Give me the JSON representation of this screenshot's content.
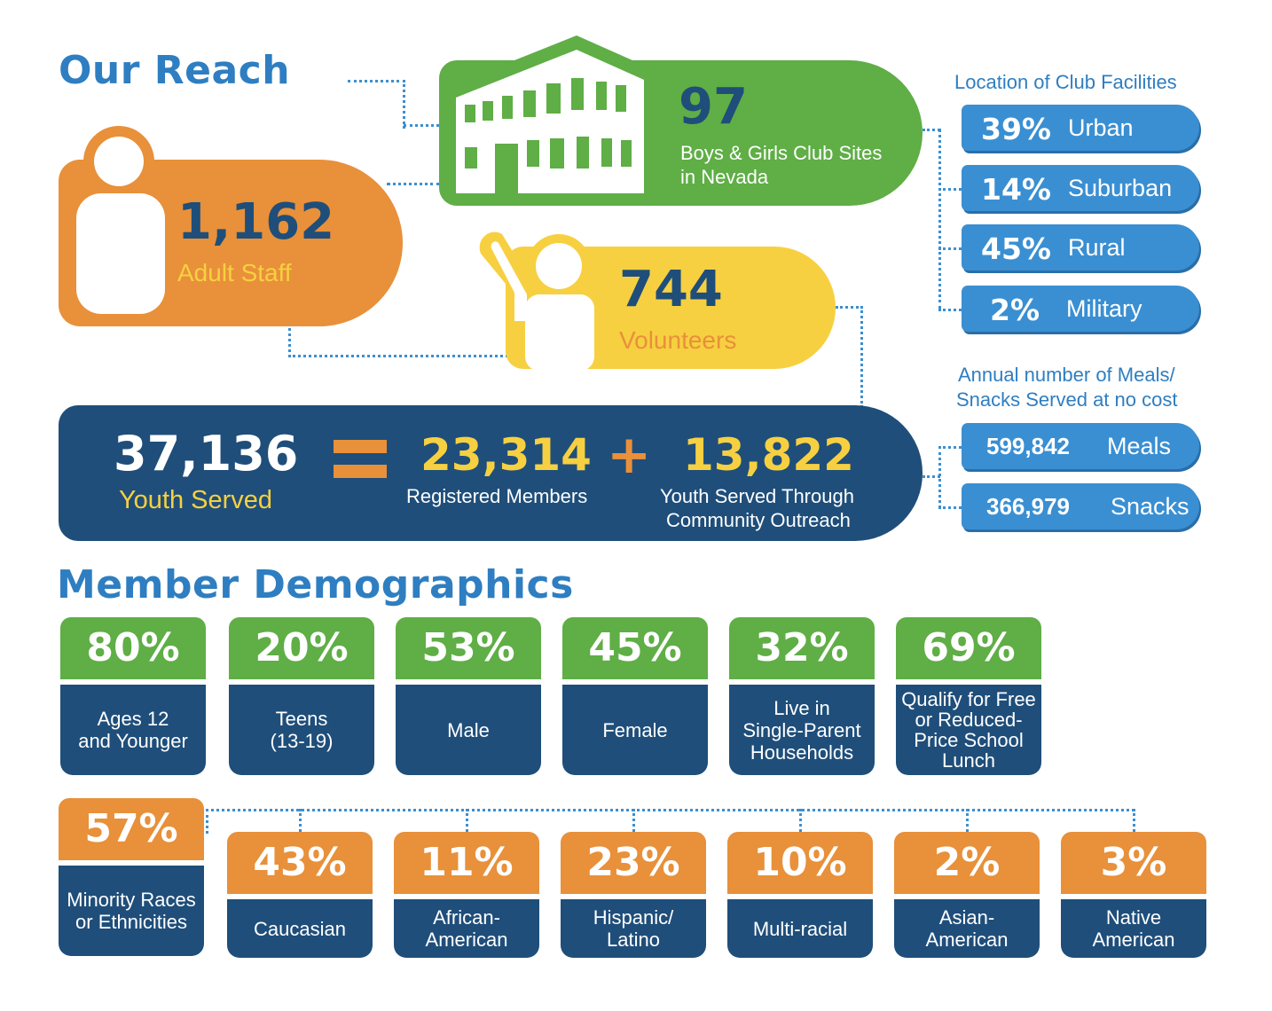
{
  "headings": {
    "reach": "Our Reach",
    "demographics": "Member Demographics"
  },
  "clubs": {
    "value": "97",
    "label_line1": "Boys & Girls Club Sites",
    "label_line2": "in Nevada"
  },
  "staff": {
    "value": "1,162",
    "label": "Adult Staff"
  },
  "volunteers": {
    "value": "744",
    "label": "Volunteers"
  },
  "locations": {
    "heading": "Location of Club Facilities",
    "items": [
      {
        "pct": "39%",
        "label": "Urban"
      },
      {
        "pct": "14%",
        "label": "Suburban"
      },
      {
        "pct": "45%",
        "label": "Rural"
      },
      {
        "pct": "2%",
        "label": "Military"
      }
    ]
  },
  "meals": {
    "heading_line1": "Annual number of Meals/",
    "heading_line2": "Snacks Served at no cost",
    "items": [
      {
        "value": "599,842",
        "label": "Meals"
      },
      {
        "value": "366,979",
        "label": "Snacks"
      }
    ]
  },
  "youth": {
    "total": "37,136",
    "total_label": "Youth Served",
    "equals": "=",
    "plus": "+",
    "registered": "23,314",
    "registered_label": "Registered Members",
    "outreach": "13,822",
    "outreach_line1": "Youth Served Through",
    "outreach_line2": "Community Outreach"
  },
  "demographics_row1": [
    {
      "pct": "80%",
      "l1": "Ages 12",
      "l2": "and Younger"
    },
    {
      "pct": "20%",
      "l1": "Teens",
      "l2": "(13-19)"
    },
    {
      "pct": "53%",
      "l1": "Male"
    },
    {
      "pct": "45%",
      "l1": "Female"
    },
    {
      "pct": "32%",
      "l1": "Live in",
      "l2": "Single-Parent",
      "l3": "Households"
    },
    {
      "pct": "69%",
      "l1": "Qualify for Free",
      "l2": "or Reduced-",
      "l3": "Price School",
      "l4": "Lunch"
    }
  ],
  "demographics_row2": [
    {
      "pct": "57%",
      "l1": "Minority Races",
      "l2": "or Ethnicities"
    },
    {
      "pct": "43%",
      "l1": "Caucasian"
    },
    {
      "pct": "11%",
      "l1": "African-",
      "l2": "American"
    },
    {
      "pct": "23%",
      "l1": "Hispanic/",
      "l2": "Latino"
    },
    {
      "pct": "10%",
      "l1": "Multi-racial"
    },
    {
      "pct": "2%",
      "l1": "Asian-",
      "l2": "American"
    },
    {
      "pct": "3%",
      "l1": "Native",
      "l2": "American"
    }
  ],
  "colors": {
    "green": "#5fae46",
    "orange": "#e8903a",
    "yellow": "#f7d041",
    "navy": "#1f4e7a",
    "blue": "#3a8fd2"
  }
}
